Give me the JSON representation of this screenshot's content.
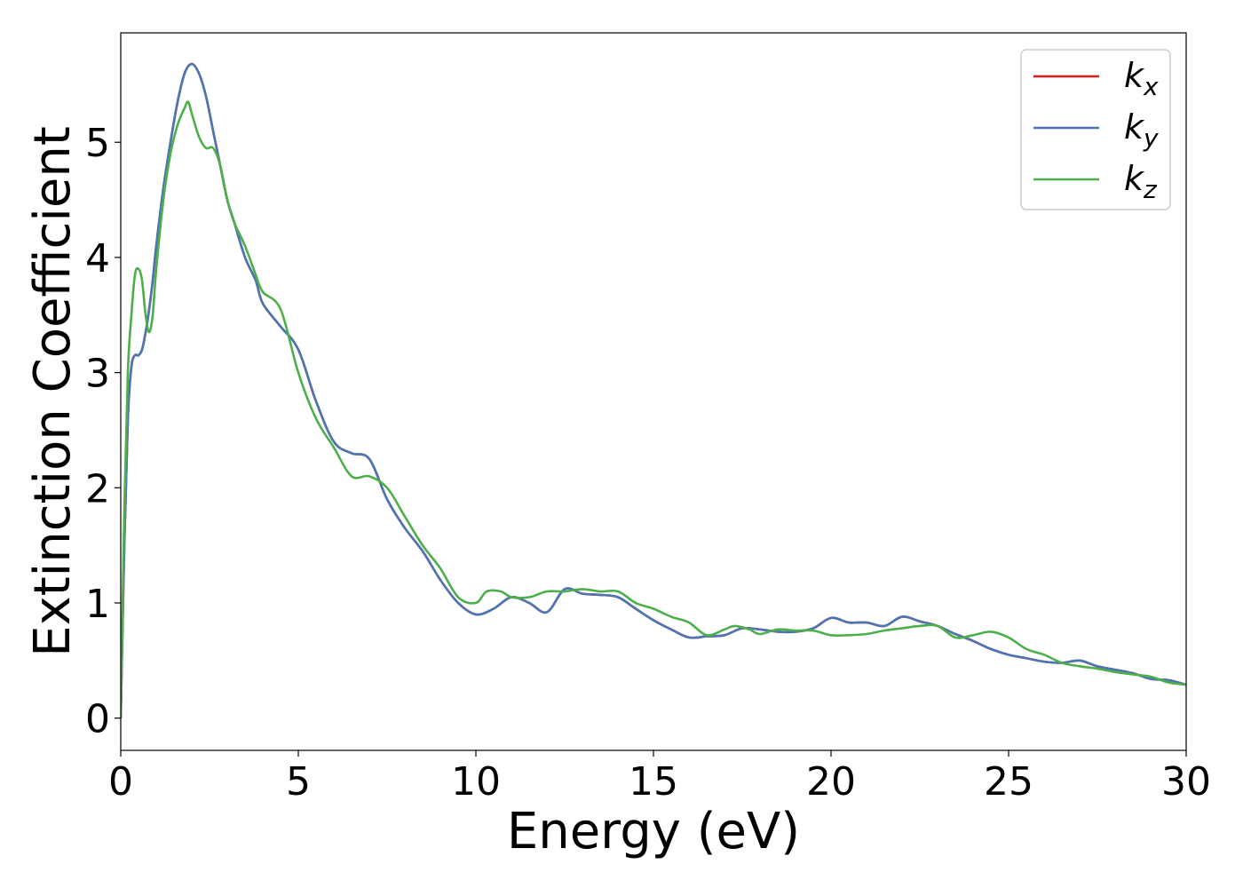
{
  "chart_data": {
    "type": "line",
    "title": "",
    "xlabel": "Energy (eV)",
    "ylabel": "Extinction Coefficient",
    "xlim": [
      0,
      30
    ],
    "ylim": [
      -0.28,
      5.95
    ],
    "xticks": [
      0,
      5,
      10,
      15,
      20,
      25,
      30
    ],
    "yticks": [
      0,
      1,
      2,
      3,
      4,
      5
    ],
    "grid": false,
    "legend_position": "top-right",
    "series": [
      {
        "name": "kx",
        "name_base": "k",
        "name_sub": "x",
        "color": "#e41a1c",
        "x": [
          0,
          0.1,
          0.2,
          0.3,
          0.4,
          0.5,
          0.6,
          0.7,
          0.8,
          0.9,
          1.0,
          1.2,
          1.4,
          1.6,
          1.8,
          2.0,
          2.2,
          2.4,
          2.6,
          2.8,
          3.0,
          3.2,
          3.5,
          3.8,
          4.0,
          4.5,
          5.0,
          5.5,
          6.0,
          6.5,
          7.0,
          7.5,
          8.0,
          8.5,
          9.0,
          9.5,
          10.0,
          10.5,
          11.0,
          11.5,
          12.0,
          12.5,
          13.0,
          13.5,
          14.0,
          14.5,
          15.0,
          15.5,
          16.0,
          16.5,
          17.0,
          17.5,
          18.0,
          18.5,
          19.0,
          19.5,
          20.0,
          20.5,
          21.0,
          21.5,
          22.0,
          22.5,
          23.0,
          23.5,
          24.0,
          24.5,
          25.0,
          25.5,
          26.0,
          26.5,
          27.0,
          27.5,
          28.0,
          28.5,
          29.0,
          29.5,
          30.0
        ],
        "y": [
          0,
          1.5,
          2.6,
          3.05,
          3.15,
          3.15,
          3.2,
          3.35,
          3.55,
          3.8,
          4.1,
          4.6,
          5.0,
          5.35,
          5.6,
          5.68,
          5.6,
          5.4,
          5.1,
          4.8,
          4.5,
          4.3,
          4.0,
          3.8,
          3.6,
          3.4,
          3.2,
          2.75,
          2.4,
          2.3,
          2.25,
          1.9,
          1.65,
          1.45,
          1.2,
          1.0,
          0.9,
          0.95,
          1.05,
          1.0,
          0.92,
          1.12,
          1.08,
          1.07,
          1.05,
          0.95,
          0.85,
          0.77,
          0.7,
          0.71,
          0.72,
          0.78,
          0.77,
          0.75,
          0.75,
          0.78,
          0.87,
          0.83,
          0.83,
          0.8,
          0.88,
          0.84,
          0.8,
          0.73,
          0.67,
          0.6,
          0.55,
          0.52,
          0.49,
          0.48,
          0.5,
          0.45,
          0.42,
          0.39,
          0.34,
          0.33,
          0.29
        ]
      },
      {
        "name": "ky",
        "name_base": "k",
        "name_sub": "y",
        "color": "#4a77b4",
        "x": [
          0,
          0.1,
          0.2,
          0.3,
          0.4,
          0.5,
          0.6,
          0.7,
          0.8,
          0.9,
          1.0,
          1.2,
          1.4,
          1.6,
          1.8,
          2.0,
          2.2,
          2.4,
          2.6,
          2.8,
          3.0,
          3.2,
          3.5,
          3.8,
          4.0,
          4.5,
          5.0,
          5.5,
          6.0,
          6.5,
          7.0,
          7.5,
          8.0,
          8.5,
          9.0,
          9.5,
          10.0,
          10.5,
          11.0,
          11.5,
          12.0,
          12.5,
          13.0,
          13.5,
          14.0,
          14.5,
          15.0,
          15.5,
          16.0,
          16.5,
          17.0,
          17.5,
          18.0,
          18.5,
          19.0,
          19.5,
          20.0,
          20.5,
          21.0,
          21.5,
          22.0,
          22.5,
          23.0,
          23.5,
          24.0,
          24.5,
          25.0,
          25.5,
          26.0,
          26.5,
          27.0,
          27.5,
          28.0,
          28.5,
          29.0,
          29.5,
          30.0
        ],
        "y": [
          0,
          1.5,
          2.6,
          3.05,
          3.15,
          3.15,
          3.2,
          3.35,
          3.55,
          3.8,
          4.1,
          4.6,
          5.0,
          5.35,
          5.6,
          5.68,
          5.6,
          5.4,
          5.1,
          4.8,
          4.5,
          4.3,
          4.0,
          3.8,
          3.6,
          3.4,
          3.2,
          2.75,
          2.4,
          2.3,
          2.25,
          1.9,
          1.65,
          1.45,
          1.2,
          1.0,
          0.9,
          0.95,
          1.05,
          1.0,
          0.92,
          1.12,
          1.08,
          1.07,
          1.05,
          0.95,
          0.85,
          0.77,
          0.7,
          0.71,
          0.72,
          0.78,
          0.77,
          0.75,
          0.75,
          0.78,
          0.87,
          0.83,
          0.83,
          0.8,
          0.88,
          0.84,
          0.8,
          0.73,
          0.67,
          0.6,
          0.55,
          0.52,
          0.49,
          0.48,
          0.5,
          0.45,
          0.42,
          0.39,
          0.34,
          0.33,
          0.29
        ]
      },
      {
        "name": "kz",
        "name_base": "k",
        "name_sub": "z",
        "color": "#4daf4a",
        "x": [
          0,
          0.1,
          0.2,
          0.3,
          0.4,
          0.5,
          0.6,
          0.7,
          0.8,
          0.9,
          1.0,
          1.2,
          1.4,
          1.6,
          1.8,
          1.9,
          2.0,
          2.2,
          2.4,
          2.6,
          2.8,
          3.0,
          3.2,
          3.5,
          3.8,
          4.0,
          4.5,
          5.0,
          5.5,
          6.0,
          6.5,
          7.0,
          7.5,
          8.0,
          8.5,
          9.0,
          9.5,
          10.0,
          10.3,
          10.7,
          11.0,
          11.5,
          12.0,
          12.5,
          13.0,
          13.5,
          14.0,
          14.5,
          15.0,
          15.5,
          16.0,
          16.5,
          17.0,
          17.3,
          17.7,
          18.0,
          18.5,
          19.0,
          19.5,
          20.0,
          20.5,
          21.0,
          21.5,
          22.0,
          22.5,
          23.0,
          23.5,
          24.0,
          24.5,
          25.0,
          25.5,
          26.0,
          26.5,
          27.0,
          27.5,
          28.0,
          28.5,
          29.0,
          29.5,
          30.0
        ],
        "y": [
          0,
          1.8,
          3.0,
          3.5,
          3.85,
          3.9,
          3.8,
          3.5,
          3.35,
          3.5,
          3.9,
          4.5,
          4.9,
          5.15,
          5.3,
          5.35,
          5.25,
          5.05,
          4.95,
          4.95,
          4.8,
          4.5,
          4.3,
          4.1,
          3.85,
          3.7,
          3.55,
          3.0,
          2.6,
          2.35,
          2.1,
          2.1,
          2.0,
          1.75,
          1.5,
          1.3,
          1.05,
          1.0,
          1.1,
          1.1,
          1.05,
          1.05,
          1.1,
          1.1,
          1.12,
          1.1,
          1.1,
          1.0,
          0.95,
          0.88,
          0.83,
          0.72,
          0.77,
          0.8,
          0.77,
          0.73,
          0.77,
          0.76,
          0.76,
          0.72,
          0.72,
          0.73,
          0.76,
          0.78,
          0.8,
          0.8,
          0.7,
          0.72,
          0.75,
          0.7,
          0.6,
          0.55,
          0.48,
          0.45,
          0.43,
          0.4,
          0.38,
          0.36,
          0.31,
          0.29
        ]
      }
    ]
  }
}
